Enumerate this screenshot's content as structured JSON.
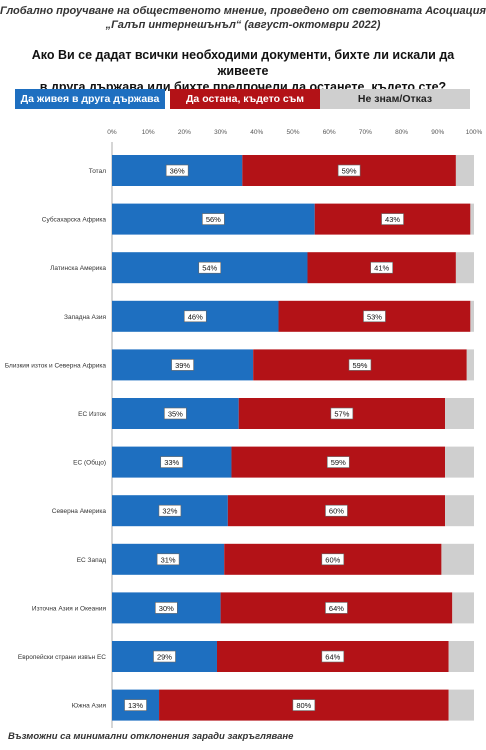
{
  "header": {
    "line1": "Глобално проучване на общественото мнение, проведено от световната Асоциация",
    "line2": "„Галъп интернешънъл“ (август-октомври 2022)"
  },
  "question": {
    "line1": "Ако Ви се дадат всички необходими документи, бихте ли искали да живеете",
    "line2": "в друга държава или бихте предпочели да останете, където сте?"
  },
  "legend": {
    "series1": "Да живея в друга държава",
    "series2": "Да остана, където съм",
    "series3": "Не знам/Отказ"
  },
  "footer": "Възможни са минимални отклонения заради закръгляване",
  "colors": {
    "series1": "#1e6fc0",
    "series2": "#b31217",
    "series3": "#cfcfcf"
  },
  "chart_data": {
    "type": "bar",
    "orientation": "horizontal",
    "stacked": true,
    "categories": [
      "Тотал",
      "Субсахарска Африка",
      "Латинска Америка",
      "Западна Азия",
      "Близкия изток и Северна Африка",
      "ЕС Изток",
      "ЕС (Общо)",
      "Северна Америка",
      "ЕС Запад",
      "Източна Азия и Океания",
      "Европейски страни извън ЕС",
      "Южна Азия"
    ],
    "series": [
      {
        "name": "Да живея в друга държава",
        "values": [
          36,
          56,
          54,
          46,
          39,
          35,
          33,
          32,
          31,
          30,
          29,
          13
        ]
      },
      {
        "name": "Да остана, където съм",
        "values": [
          59,
          43,
          41,
          53,
          59,
          57,
          59,
          60,
          60,
          64,
          64,
          80
        ]
      },
      {
        "name": "Не знам/Отказ",
        "values": [
          5,
          1,
          5,
          1,
          2,
          8,
          8,
          8,
          9,
          6,
          7,
          7
        ]
      }
    ],
    "data_labels": [
      [
        "36%",
        "56%",
        "54%",
        "46%",
        "39%",
        "35%",
        "33%",
        "32%",
        "31%",
        "30%",
        "29%",
        "13%"
      ],
      [
        "59%",
        "43%",
        "41%",
        "53%",
        "59%",
        "57%",
        "59%",
        "60%",
        "60%",
        "64%",
        "64%",
        "80%"
      ]
    ],
    "x_ticks": [
      "0%",
      "10%",
      "20%",
      "30%",
      "40%",
      "50%",
      "60%",
      "70%",
      "80%",
      "90%",
      "100%"
    ],
    "xlim": [
      0,
      100
    ],
    "grid": false,
    "legend_position": "top"
  }
}
